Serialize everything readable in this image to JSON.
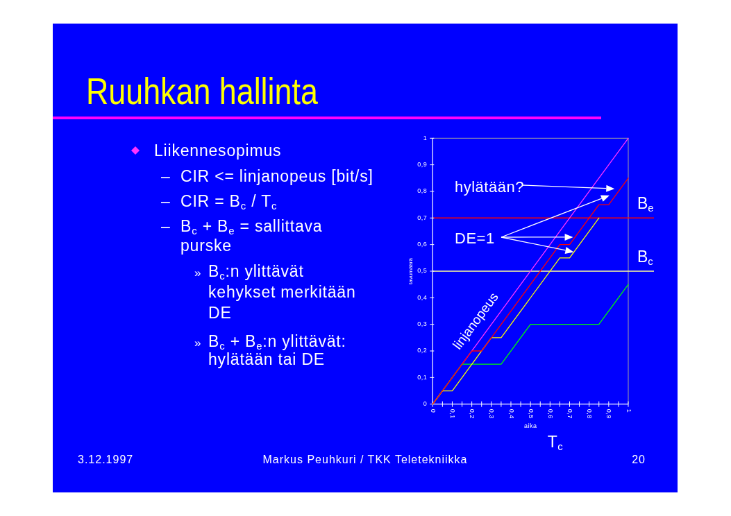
{
  "chart_data": {
    "type": "line",
    "title": "Ruuhkan hallinta",
    "xlabel": "aika",
    "ylabel": "tavumäärä",
    "xlim": [
      0,
      1
    ],
    "ylim": [
      0,
      1
    ],
    "xticks": [
      0,
      {
        "value": 0.05,
        "label": null
      },
      {
        "value": 0.1,
        "label": "0,1"
      },
      {
        "value": 0.15,
        "label": null
      },
      {
        "value": 0.2,
        "label": "0,2"
      },
      {
        "value": 0.25,
        "label": null
      },
      {
        "value": 0.3,
        "label": "0,3"
      },
      {
        "value": 0.35,
        "label": null
      },
      {
        "value": 0.4,
        "label": "0,4"
      },
      {
        "value": 0.45,
        "label": null
      },
      {
        "value": 0.5,
        "label": "0,5"
      },
      {
        "value": 0.55,
        "label": null
      },
      {
        "value": 0.6,
        "label": "0,6"
      },
      {
        "value": 0.65,
        "label": null
      },
      {
        "value": 0.7,
        "label": "0,7"
      },
      {
        "value": 0.75,
        "label": null
      },
      {
        "value": 0.8,
        "label": "0,8"
      },
      {
        "value": 0.85,
        "label": null
      },
      {
        "value": 0.9,
        "label": "0,9"
      },
      {
        "value": 0.95,
        "label": null
      },
      1
    ],
    "yticks": [
      0,
      {
        "value": 0.1,
        "label": "0,1"
      },
      {
        "value": 0.2,
        "label": "0,2"
      },
      {
        "value": 0.3,
        "label": "0,3"
      },
      {
        "value": 0.4,
        "label": "0,4"
      },
      {
        "value": 0.5,
        "label": "0,5"
      },
      {
        "value": 0.6,
        "label": "0,6"
      },
      {
        "value": 0.7,
        "label": "0,7"
      },
      {
        "value": 0.8,
        "label": "0,8"
      },
      {
        "value": 0.9,
        "label": "0,9"
      },
      1
    ],
    "series": [
      {
        "name": "linjanopeus",
        "color": "#ff33ff",
        "x": [
          0,
          1
        ],
        "values": [
          0,
          1
        ]
      },
      {
        "color": "#00ff00",
        "x": [
          0,
          0.15,
          0.35,
          0.5,
          0.85,
          1
        ],
        "values": [
          0,
          0.15,
          0.15,
          0.3,
          0.3,
          0.45
        ]
      },
      {
        "color": "#ffff00",
        "x": [
          0,
          0.05,
          0.1,
          0.3,
          0.35,
          0.65,
          0.7,
          0.85
        ],
        "values": [
          0,
          0.05,
          0.05,
          0.25,
          0.25,
          0.55,
          0.55,
          0.7
        ]
      },
      {
        "color": "#ff0000",
        "x": [
          0,
          0.2,
          0.25,
          0.65,
          0.7,
          0.85,
          0.9,
          1
        ],
        "values": [
          0,
          0.2,
          0.2,
          0.6,
          0.6,
          0.75,
          0.75,
          0.85
        ]
      }
    ],
    "ref_lines": [
      {
        "axis": "y",
        "value": 0.7,
        "label": "B$_{e}$",
        "color": "#ff0000"
      },
      {
        "axis": "y",
        "value": 0.5,
        "label": "B$_{c}$",
        "color": "#ffff99"
      }
    ],
    "annotations": [
      "Liikennesopimus",
      "– CIR <= linjanopeus [bit/s]",
      "– CIR = B$_{c}$ / T$_{c}$",
      "– B$_{c}$ + B$_{e}$ = sallittava\npurske",
      "» B$_{c}$:n ylittävät\nkehykset merkitään\nDE",
      "» B$_{c}$ + B$_{e}$:n ylittävät:\nhylätään tai DE",
      "hylätään?",
      "DE=1",
      "T$_{c}$",
      "3.12.1997",
      "Markus Peuhkuri / TKK Teletekniikka",
      "20"
    ]
  }
}
